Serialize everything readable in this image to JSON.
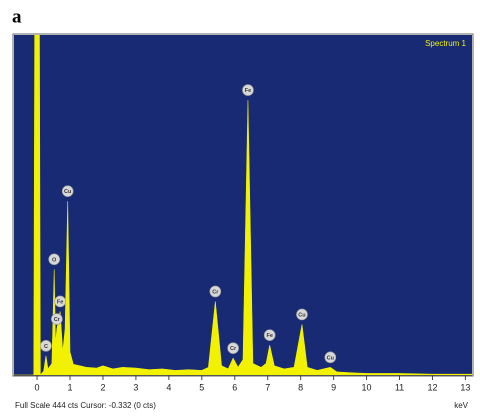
{
  "chart_data": {
    "type": "line",
    "panel_label": "a",
    "series": [
      {
        "name": "Spectrum 1",
        "color": "#f2f200",
        "x": [
          -0.7,
          -0.1,
          -0.05,
          0.05,
          0.1,
          0.2,
          0.27,
          0.33,
          0.45,
          0.52,
          0.56,
          0.6,
          0.7,
          0.78,
          0.85,
          0.93,
          1.0,
          1.1,
          1.3,
          1.5,
          1.8,
          2.0,
          2.3,
          2.6,
          3.0,
          3.4,
          3.8,
          4.2,
          4.6,
          5.0,
          5.2,
          5.41,
          5.6,
          5.8,
          5.95,
          6.1,
          6.25,
          6.4,
          6.55,
          6.8,
          6.95,
          7.06,
          7.2,
          7.5,
          7.8,
          8.04,
          8.2,
          8.5,
          8.9,
          9.1,
          9.5,
          10,
          11,
          12,
          13.2
        ],
        "values": [
          0,
          0,
          800,
          800,
          0,
          5,
          25,
          8,
          15,
          138,
          40,
          60,
          83,
          30,
          60,
          227,
          30,
          14,
          12,
          10,
          9,
          12,
          8,
          10,
          9,
          7,
          8,
          6,
          7,
          6,
          10,
          96,
          12,
          8,
          22,
          10,
          20,
          359,
          15,
          10,
          15,
          39,
          12,
          8,
          10,
          66,
          10,
          6,
          10,
          4,
          3,
          2,
          2,
          1,
          1
        ]
      }
    ],
    "peaks": [
      {
        "label": "C",
        "x": 0.27
      },
      {
        "label": "O",
        "x": 0.52
      },
      {
        "label": "Cr",
        "x": 0.6
      },
      {
        "label": "Fe",
        "x": 0.7
      },
      {
        "label": "Cu",
        "x": 0.93
      },
      {
        "label": "Cr",
        "x": 5.41
      },
      {
        "label": "Cr",
        "x": 5.95
      },
      {
        "label": "Fe",
        "x": 6.4
      },
      {
        "label": "Fe",
        "x": 7.06
      },
      {
        "label": "Cu",
        "x": 8.04
      },
      {
        "label": "Cu",
        "x": 8.9
      }
    ],
    "xlim": [
      -0.7,
      13.2
    ],
    "xticks": [
      0,
      1,
      2,
      3,
      4,
      5,
      6,
      7,
      8,
      9,
      10,
      11,
      12,
      13
    ],
    "ylim": [
      0,
      444
    ],
    "x_unit": "keV",
    "status": "Full Scale 444 cts Cursor: -0.332 (0 cts)"
  }
}
